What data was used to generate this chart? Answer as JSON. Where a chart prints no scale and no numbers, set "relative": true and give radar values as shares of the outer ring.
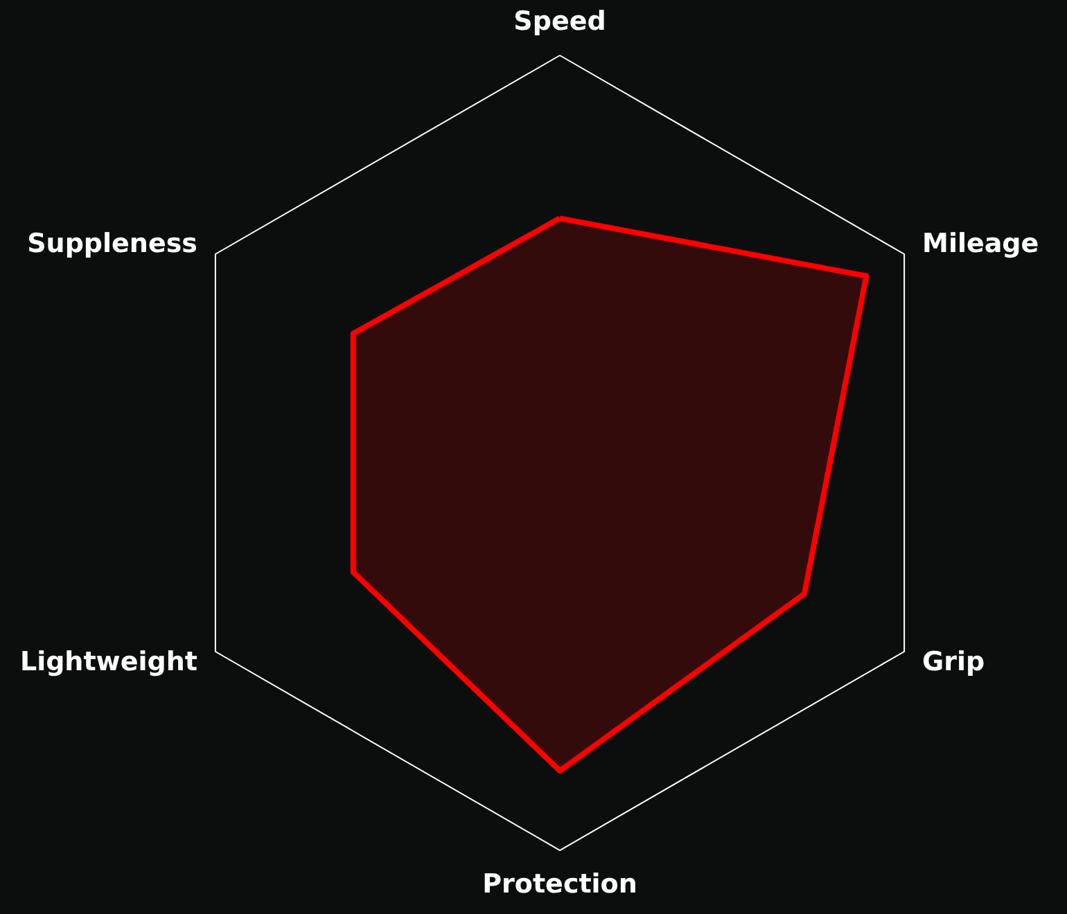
{
  "chart_data": {
    "type": "radar",
    "relative": true,
    "categories": [
      "Speed",
      "Mileage",
      "Grip",
      "Protection",
      "Lightweight",
      "Suppleness"
    ],
    "series": [
      {
        "color": "#ff0000",
        "values": [
          0.59,
          0.89,
          0.71,
          0.8,
          0.6,
          0.6
        ]
      }
    ]
  }
}
